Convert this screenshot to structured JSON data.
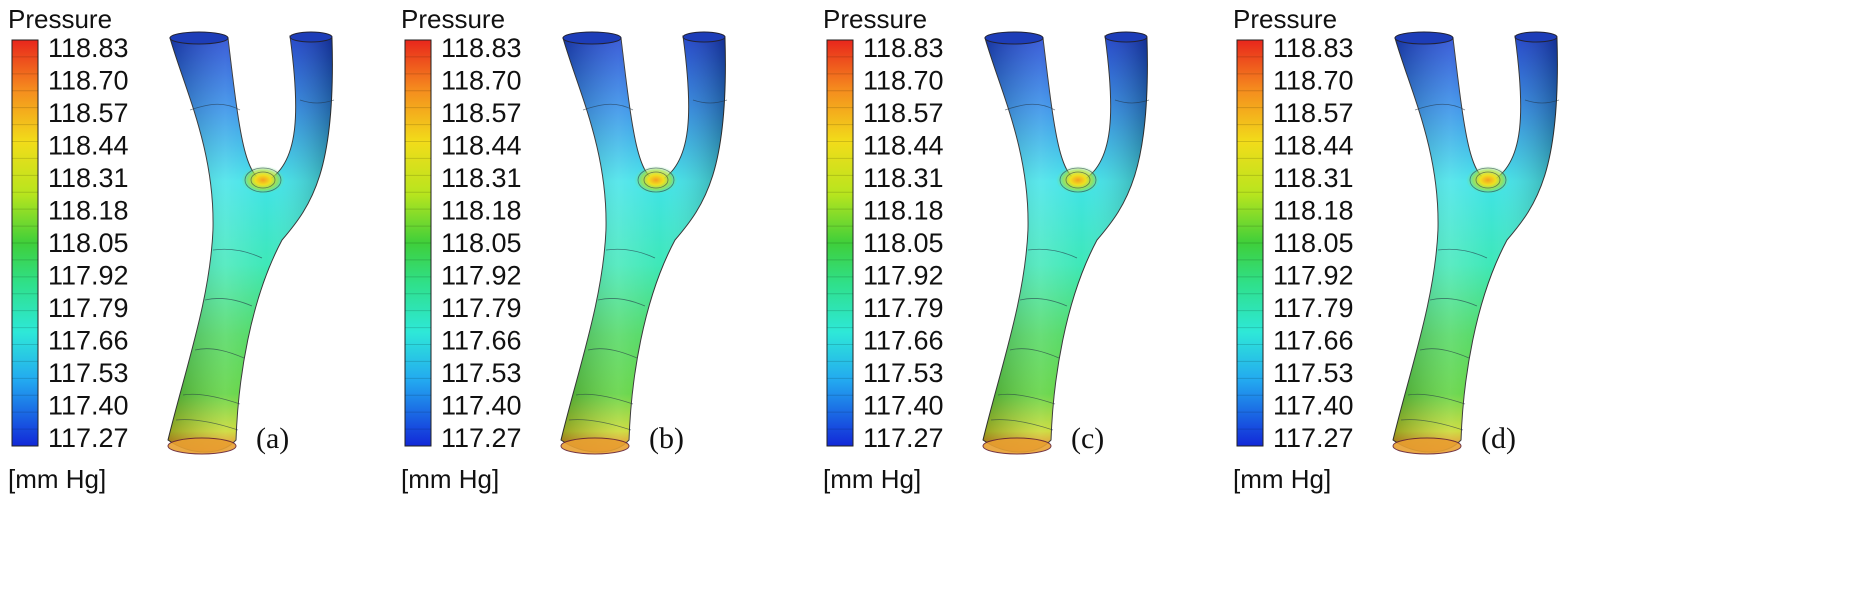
{
  "panels": [
    {
      "label": "(a)",
      "legend": {
        "title": "Pressure",
        "ticks": [
          "118.83",
          "118.70",
          "118.57",
          "118.44",
          "118.31",
          "118.18",
          "118.05",
          "117.92",
          "117.79",
          "117.66",
          "117.53",
          "117.40",
          "117.27"
        ],
        "unit": "[mm Hg]"
      }
    },
    {
      "label": "(b)",
      "legend": {
        "title": "Pressure",
        "ticks": [
          "118.83",
          "118.70",
          "118.57",
          "118.44",
          "118.31",
          "118.18",
          "118.05",
          "117.92",
          "117.79",
          "117.66",
          "117.53",
          "117.40",
          "117.27"
        ],
        "unit": "[mm Hg]"
      }
    },
    {
      "label": "(c)",
      "legend": {
        "title": "Pressure",
        "ticks": [
          "118.83",
          "118.70",
          "118.57",
          "118.44",
          "118.31",
          "118.18",
          "118.05",
          "117.92",
          "117.79",
          "117.66",
          "117.53",
          "117.40",
          "117.27"
        ],
        "unit": "[mm Hg]"
      }
    },
    {
      "label": "(d)",
      "legend": {
        "title": "Pressure",
        "ticks": [
          "118.83",
          "118.70",
          "118.57",
          "118.44",
          "118.31",
          "118.18",
          "118.05",
          "117.92",
          "117.79",
          "117.66",
          "117.53",
          "117.40",
          "117.27"
        ],
        "unit": "[mm Hg]"
      }
    }
  ]
}
